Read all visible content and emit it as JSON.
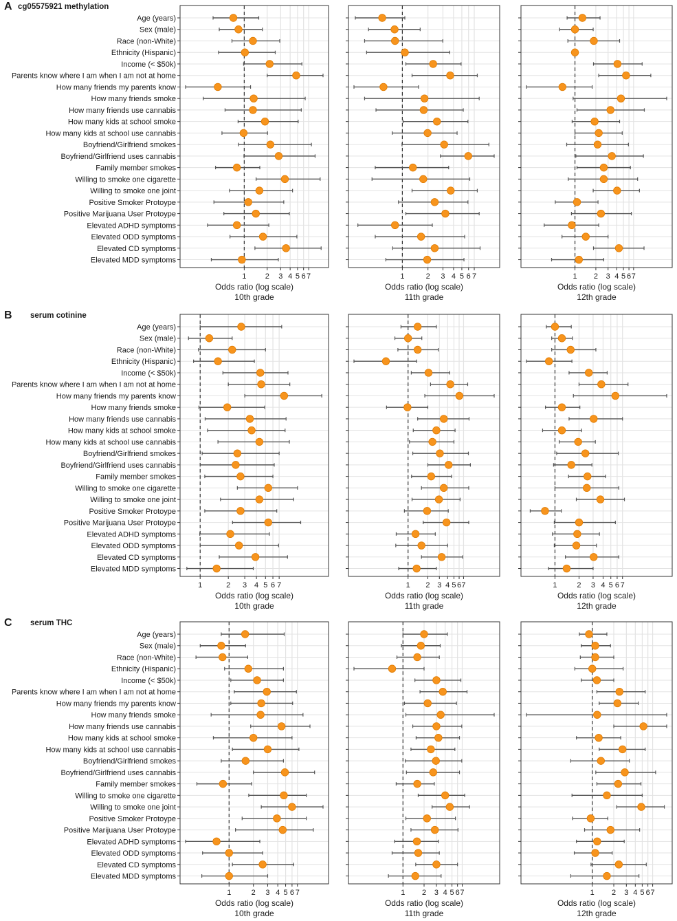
{
  "figure": {
    "style": {
      "point_color": "#f7941d",
      "point_stroke": "#e07b00",
      "ci_color": "#555555",
      "grid_color": "#e3e3e3",
      "frame_color": "#333333",
      "text_color": "#1a1a1a"
    },
    "row_labels": [
      "Age (years)",
      "Sex (male)",
      "Race (non-White)",
      "Ethnicity (Hispanic)",
      "Income (< $50k)",
      "Parents know where I am when I am not at home",
      "How many friends my parents know",
      "How many friends smoke",
      "How many friends use cannabis",
      "How many kids at school smoke",
      "How many kids at school use cannabis",
      "Boyfriend/Girlfriend smokes",
      "Boyfriend/Girlfriend uses cannabis",
      "Family member smokes",
      "Willing to smoke one cigarette",
      "Willing to smoke one joint",
      "Positive Smoker Protoype",
      "Positive Marijuana User Protoype",
      "Elevated ADHD symptoms",
      "Elevated ODD symptoms",
      "Elevated CD symptoms",
      "Elevated MDD symptoms"
    ],
    "x_axis_label": "Odds ratio (log scale)",
    "x_ticks": [
      1,
      2,
      3,
      4,
      5,
      6,
      7
    ],
    "panels": [
      {
        "letter": "A",
        "title": "cg05575921 methylation",
        "grades": [
          {
            "label": "10th grade",
            "chart_data": {
              "type": "scatter",
              "x_scale": "log",
              "reference_line": 1,
              "odds_ratio": [
                0.72,
                0.84,
                1.3,
                1.02,
                2.15,
                4.8,
                0.45,
                1.33,
                1.3,
                1.87,
                0.98,
                2.2,
                2.83,
                0.8,
                3.41,
                1.58,
                1.13,
                1.42,
                0.8,
                1.76,
                3.53,
                0.93
              ],
              "ci_low": [
                0.39,
                0.47,
                0.69,
                0.46,
                0.98,
                2.0,
                0.17,
                0.29,
                0.56,
                0.83,
                0.51,
                0.84,
                0.99,
                0.42,
                1.43,
                0.64,
                0.4,
                0.54,
                0.33,
                0.65,
                1.38,
                0.37
              ],
              "ci_high": [
                1.55,
                1.73,
                2.92,
                2.55,
                5.7,
                10.8,
                1.21,
                6.3,
                5.6,
                5.1,
                2.02,
                7.6,
                8.5,
                1.6,
                9.9,
                4.3,
                3.3,
                3.9,
                2.1,
                4.9,
                10.2,
                2.8
              ]
            }
          },
          {
            "label": "11th grade",
            "chart_data": {
              "type": "scatter",
              "x_scale": "log",
              "reference_line": 1,
              "odds_ratio": [
                0.58,
                0.81,
                0.82,
                1.07,
                2.3,
                3.65,
                0.6,
                1.82,
                1.78,
                2.55,
                1.98,
                3.1,
                5.95,
                1.33,
                1.76,
                3.7,
                2.4,
                3.2,
                0.82,
                1.66,
                2.4,
                1.96
              ],
              "ci_low": [
                0.28,
                0.4,
                0.36,
                0.38,
                1.1,
                1.3,
                0.27,
                0.36,
                0.49,
                1.02,
                0.76,
                0.99,
                2.8,
                0.48,
                0.44,
                1.3,
                0.9,
                1.1,
                0.3,
                0.48,
                0.77,
                0.64
              ],
              "ci_high": [
                1.07,
                1.62,
                2.99,
                3.6,
                4.9,
                7.6,
                1.55,
                8.0,
                5.2,
                5.9,
                4.4,
                10.4,
                12.0,
                3.5,
                6.2,
                7.6,
                5.9,
                8.0,
                2.25,
                5.4,
                8.2,
                5.3
              ]
            }
          },
          {
            "label": "12th grade",
            "chart_data": {
              "type": "scatter",
              "x_scale": "log",
              "reference_line": 1,
              "odds_ratio": [
                1.28,
                1.0,
                1.87,
                1.0,
                4.1,
                5.45,
                0.66,
                4.6,
                3.25,
                1.92,
                2.2,
                2.12,
                3.4,
                2.6,
                2.6,
                4.05,
                1.07,
                2.37,
                0.9,
                1.43,
                4.3,
                1.14
              ],
              "ci_low": [
                0.77,
                0.6,
                0.79,
                0.92,
                1.85,
                2.2,
                0.2,
                0.94,
                1.07,
                0.91,
                1.0,
                0.76,
                1.03,
                1.07,
                0.8,
                1.83,
                0.52,
                0.89,
                0.36,
                0.65,
                1.85,
                0.46
              ],
              "ci_high": [
                2.3,
                1.83,
                4.4,
                1.0,
                9.3,
                12.4,
                1.77,
                21.0,
                10.0,
                4.4,
                4.8,
                5.9,
                9.7,
                6.3,
                8.0,
                8.5,
                2.15,
                6.5,
                2.2,
                3.0,
                9.9,
                2.6
              ]
            }
          }
        ]
      },
      {
        "letter": "B",
        "title": "serum cotinine",
        "grades": [
          {
            "label": "10th grade",
            "chart_data": {
              "type": "scatter",
              "x_scale": "log",
              "reference_line": 1,
              "odds_ratio": [
                2.75,
                1.25,
                2.2,
                1.55,
                4.4,
                4.5,
                7.9,
                1.95,
                3.4,
                3.55,
                4.3,
                2.5,
                2.4,
                2.7,
                5.35,
                4.3,
                2.7,
                5.35,
                2.1,
                2.6,
                3.9,
                1.5
              ],
              "ci_low": [
                1.0,
                0.75,
                0.96,
                0.85,
                1.75,
                2.0,
                3.0,
                0.97,
                1.13,
                1.2,
                1.55,
                1.05,
                1.0,
                1.12,
                2.5,
                1.65,
                1.12,
                2.22,
                0.99,
                1.0,
                1.6,
                0.72
              ],
              "ci_high": [
                7.45,
                2.2,
                5.0,
                3.8,
                8.7,
                9.1,
                20.0,
                4.9,
                8.3,
                8.1,
                9.0,
                7.0,
                6.2,
                6.0,
                11.0,
                10.0,
                6.6,
                11.9,
                5.5,
                6.9,
                8.6,
                3.7
              ]
            }
          },
          {
            "label": "11th grade",
            "chart_data": {
              "type": "scatter",
              "x_scale": "log",
              "reference_line": 1,
              "odds_ratio": [
                1.4,
                1.0,
                1.4,
                0.46,
                2.05,
                4.4,
                6.05,
                0.98,
                3.5,
                2.7,
                2.35,
                3.05,
                4.15,
                2.25,
                3.5,
                2.95,
                1.95,
                3.85,
                1.3,
                1.6,
                3.25,
                1.35
              ],
              "ci_low": [
                0.78,
                0.63,
                0.7,
                0.15,
                1.12,
                2.2,
                1.8,
                0.47,
                1.4,
                1.2,
                1.05,
                1.18,
                2.0,
                1.13,
                1.6,
                1.15,
                0.88,
                1.7,
                0.66,
                0.65,
                1.6,
                0.72
              ],
              "ci_high": [
                2.7,
                1.62,
                2.9,
                1.35,
                4.3,
                8.1,
                20.5,
                2.0,
                8.5,
                5.2,
                5.0,
                8.3,
                8.9,
                4.6,
                8.4,
                6.2,
                4.1,
                8.4,
                2.6,
                4.0,
                6.8,
                2.7
              ]
            }
          },
          {
            "label": "12th grade",
            "chart_data": {
              "type": "scatter",
              "x_scale": "log",
              "reference_line": 1,
              "odds_ratio": [
                1.0,
                1.22,
                1.57,
                0.84,
                2.65,
                3.8,
                5.7,
                1.22,
                3.05,
                1.22,
                1.95,
                2.4,
                1.6,
                2.55,
                2.5,
                3.7,
                0.75,
                2.0,
                1.9,
                1.85,
                3.05,
                1.4
              ],
              "ci_low": [
                0.78,
                0.91,
                0.91,
                0.44,
                1.5,
                2.0,
                1.7,
                0.76,
                1.5,
                0.7,
                1.13,
                1.05,
                0.96,
                1.48,
                1.0,
                1.85,
                0.49,
                0.98,
                0.93,
                0.98,
                1.35,
                0.83
              ],
              "ci_high": [
                1.6,
                1.65,
                3.25,
                1.63,
                4.5,
                8.2,
                25.0,
                2.05,
                7.0,
                2.15,
                3.2,
                6.2,
                2.9,
                4.3,
                6.3,
                7.4,
                1.2,
                5.7,
                3.6,
                3.3,
                6.3,
                3.0
              ]
            }
          }
        ]
      },
      {
        "letter": "C",
        "title": "serum THC",
        "grades": [
          {
            "label": "10th grade",
            "chart_data": {
              "type": "scatter",
              "x_scale": "log",
              "reference_line": 1,
              "odds_ratio": [
                1.58,
                0.8,
                0.83,
                1.73,
                2.22,
                2.93,
                2.5,
                2.45,
                4.45,
                2.0,
                3.0,
                1.6,
                4.9,
                0.84,
                4.75,
                6.0,
                3.9,
                4.6,
                0.7,
                1.0,
                2.6,
                1.0
              ],
              "ci_low": [
                0.8,
                0.44,
                0.39,
                0.88,
                1.05,
                1.16,
                1.05,
                0.6,
                1.85,
                0.64,
                1.1,
                0.8,
                2.0,
                0.4,
                1.75,
                2.5,
                1.45,
                1.2,
                0.29,
                0.47,
                1.1,
                0.46
              ],
              "ci_high": [
                4.8,
                1.6,
                1.7,
                4.7,
                4.7,
                6.8,
                6.1,
                8.2,
                10.0,
                6.0,
                7.3,
                4.7,
                11.4,
                1.9,
                9.0,
                14.5,
                9.0,
                11.0,
                2.4,
                2.6,
                6.3,
                3.0
              ]
            }
          },
          {
            "label": "11th grade",
            "chart_data": {
              "type": "scatter",
              "x_scale": "log",
              "reference_line": 1,
              "odds_ratio": [
                2.0,
                1.8,
                1.6,
                0.7,
                3.0,
                3.7,
                2.25,
                3.45,
                3.0,
                3.2,
                2.5,
                2.95,
                2.7,
                1.6,
                4.0,
                4.65,
                2.2,
                2.85,
                1.58,
                1.65,
                3.0,
                1.5
              ],
              "ci_low": [
                1.0,
                0.95,
                0.82,
                0.2,
                1.48,
                1.75,
                1.05,
                1.1,
                1.38,
                1.54,
                1.3,
                1.08,
                1.12,
                0.8,
                1.65,
                2.6,
                1.1,
                1.3,
                0.76,
                0.7,
                1.52,
                0.62
              ],
              "ci_high": [
                4.3,
                3.4,
                3.3,
                2.0,
                6.7,
                8.2,
                5.8,
                20.0,
                6.9,
                6.4,
                5.5,
                6.9,
                6.4,
                2.8,
                7.6,
                8.9,
                5.6,
                6.1,
                3.2,
                3.3,
                6.0,
                3.5
              ]
            }
          },
          {
            "label": "12th grade",
            "chart_data": {
              "type": "scatter",
              "x_scale": "log",
              "reference_line": 1,
              "odds_ratio": [
                0.9,
                1.1,
                1.1,
                1.0,
                1.16,
                2.4,
                2.25,
                1.17,
                5.2,
                1.23,
                2.65,
                1.32,
                2.85,
                2.3,
                1.6,
                4.85,
                0.95,
                1.8,
                1.17,
                1.1,
                2.35,
                1.6
              ],
              "ci_low": [
                0.66,
                0.7,
                0.68,
                0.57,
                0.7,
                1.16,
                1.25,
                0.12,
                2.0,
                0.6,
                1.25,
                0.5,
                1.12,
                1.16,
                0.52,
                2.2,
                0.53,
                0.78,
                0.6,
                0.56,
                0.96,
                0.5
              ],
              "ci_high": [
                1.6,
                1.8,
                2.0,
                2.7,
                2.0,
                5.5,
                4.4,
                11.0,
                11.0,
                2.5,
                5.5,
                3.3,
                7.7,
                4.8,
                5.0,
                10.2,
                1.65,
                4.6,
                2.8,
                1.9,
                5.7,
                4.5
              ]
            }
          }
        ]
      }
    ]
  }
}
